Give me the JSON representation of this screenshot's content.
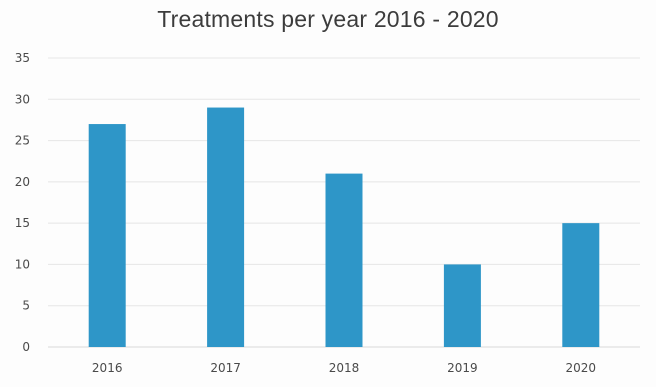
{
  "chart_data": {
    "type": "bar",
    "title": "Treatments per year 2016 - 2020",
    "categories": [
      "2016",
      "2017",
      "2018",
      "2019",
      "2020"
    ],
    "values": [
      27,
      29,
      21,
      10,
      15
    ],
    "ylim": [
      0,
      35
    ],
    "yticks": [
      "0",
      "5",
      "10",
      "15",
      "20",
      "25",
      "30",
      "35"
    ],
    "xlabel": "",
    "ylabel": "",
    "grid": true,
    "legend": "none",
    "bar_color": "#2e96c8"
  }
}
